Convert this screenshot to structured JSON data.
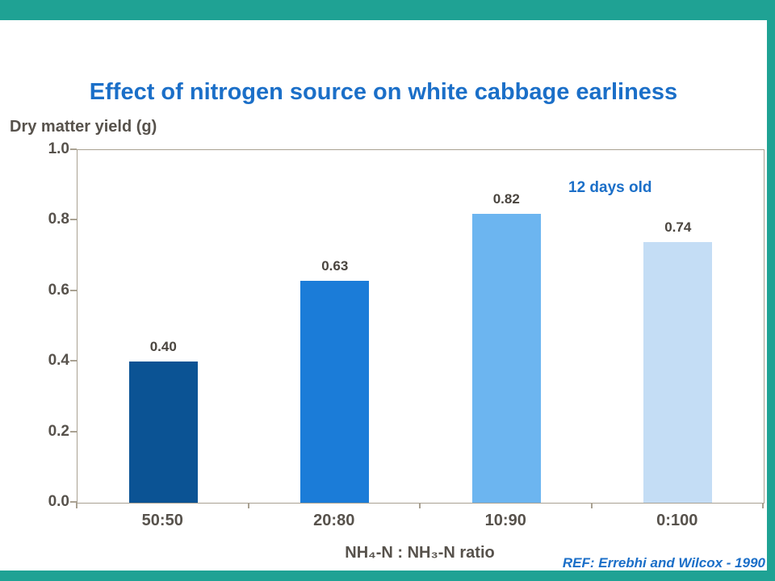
{
  "frame": {
    "color": "#1FA294"
  },
  "colors": {
    "title": "#1B6FC8",
    "axis_text": "#57524C",
    "value_label": "#4A453F",
    "annotation": "#1B6FC8",
    "reference": "#1B6FC8",
    "plot_border": "#A9A192"
  },
  "chart_data": {
    "type": "bar",
    "title": "Effect of nitrogen source on white cabbage earliness",
    "ylabel": "Dry matter yield (g)",
    "xlabel": "NH₄-N : NH₃-N ratio",
    "categories": [
      "50:50",
      "20:80",
      "10:90",
      "0:100"
    ],
    "values": [
      0.4,
      0.63,
      0.82,
      0.74
    ],
    "value_labels": [
      "0.40",
      "0.63",
      "0.82",
      "0.74"
    ],
    "bar_colors": [
      "#0B5394",
      "#1B7CD8",
      "#6CB5F0",
      "#C4DDF5"
    ],
    "ylim": [
      0,
      1.0
    ],
    "y_ticks": [
      "0.0",
      "0.2",
      "0.4",
      "0.6",
      "0.8",
      "1.0"
    ],
    "annotation": "12 days old",
    "reference": "REF: Errebhi and Wilcox - 1990",
    "legend": "none",
    "grid": false
  }
}
